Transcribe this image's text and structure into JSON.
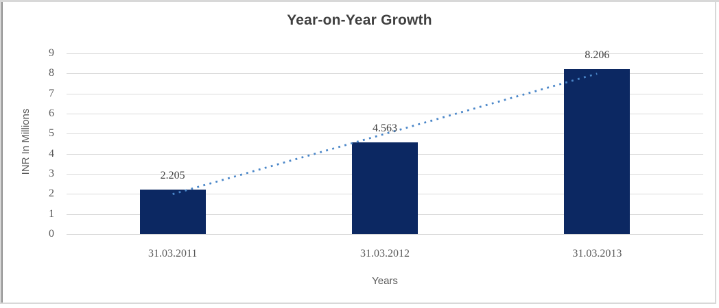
{
  "chart_data": {
    "type": "bar",
    "title": "Year-on-Year Growth",
    "categories": [
      "31.03.2011",
      "31.03.2012",
      "31.03.2013"
    ],
    "values": [
      2.205,
      4.563,
      8.206
    ],
    "data_labels": [
      "2.205",
      "4.563",
      "8.206"
    ],
    "xlabel": "Years",
    "ylabel": "INR In Millions",
    "ylim": [
      0,
      9
    ],
    "yticks": [
      0,
      1,
      2,
      3,
      4,
      5,
      6,
      7,
      8,
      9
    ],
    "grid": true,
    "legend": false,
    "bar_color": "#0c2862",
    "gridline_color": "#d9d9d9",
    "title_color": "#404040",
    "data_label_color": "#404040",
    "tick_color": "#595959",
    "axis_title_color": "#595959",
    "trendline": {
      "type": "linear",
      "style": "dotted",
      "color": "#4a86c8",
      "start_value": 1.99,
      "end_value": 7.99
    }
  },
  "frame": {
    "border_color": "#d8d8d8",
    "left_accent_color": "#8f8f8f"
  }
}
